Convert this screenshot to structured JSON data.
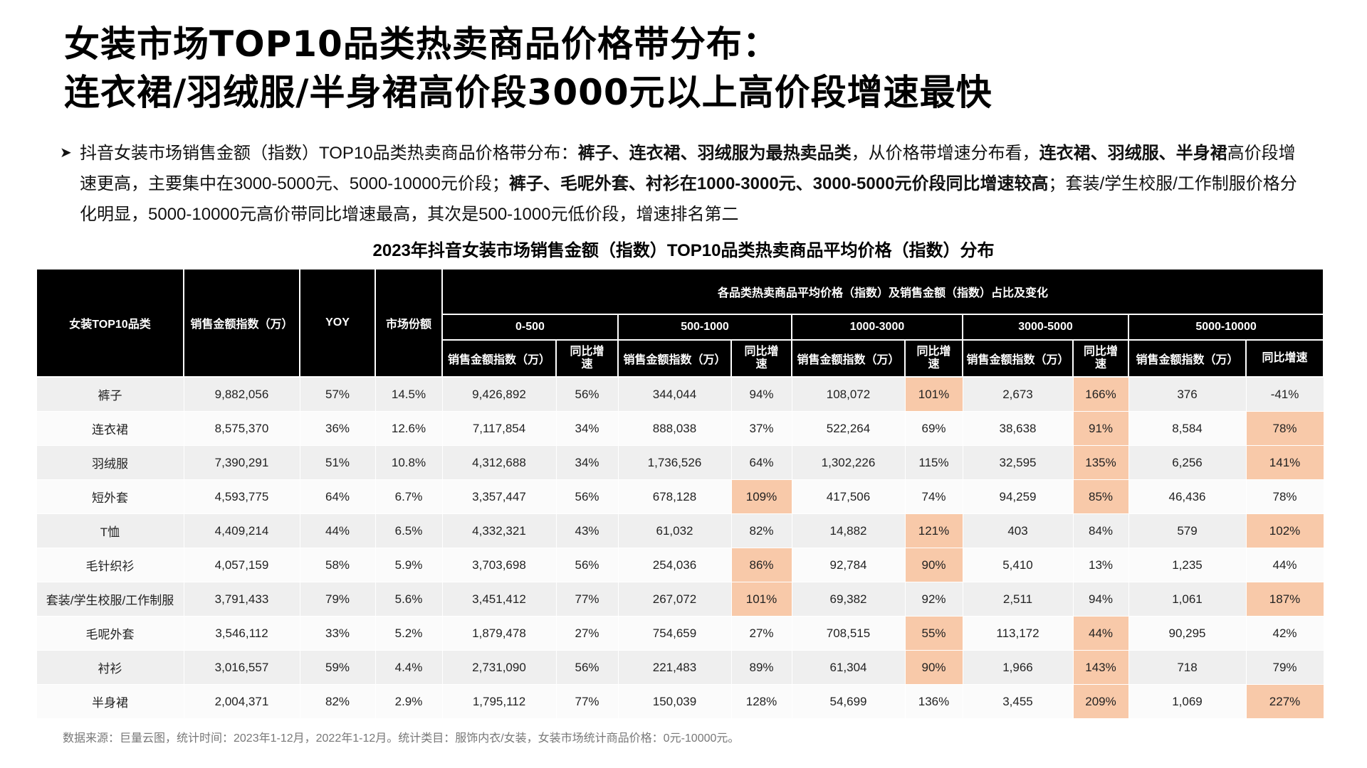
{
  "title": {
    "line1": "女装市场TOP10品类热卖商品价格带分布：",
    "line2": "连衣裙/羽绒服/半身裙高价段3000元以上高价段增速最快"
  },
  "summary": {
    "bullet": "➤",
    "p1": "抖音女装市场销售金额（指数）TOP10品类热卖商品价格带分布：",
    "b1": "裤子、连衣裙、羽绒服为最热卖品类",
    "p2": "，从价格带增速分布看，",
    "b2": "连衣裙、羽绒服、半身裙",
    "p3": "高价段增速更高，主要集中在3000-5000元、5000-10000元价段；",
    "b3": "裤子、毛呢外套、衬衫在1000-3000元、3000-5000元价段同比增速较高",
    "p4": "；套装/学生校服/工作制服价格分化明显，5000-10000元高价带同比增速最高，其次是500-1000元低价段，增速排名第二"
  },
  "table_title": "2023年抖音女装市场销售金额（指数）TOP10品类热卖商品平均价格（指数）分布",
  "header": {
    "category": "女装TOP10品类",
    "sales": "销售金额指数（万）",
    "yoy": "YOY",
    "share": "市场份额",
    "group": "各品类热卖商品平均价格（指数）及销售金额（指数）占比及变化",
    "bands": [
      "0-500",
      "500-1000",
      "1000-3000",
      "3000-5000",
      "5000-10000"
    ],
    "sub_sales": "销售金额指数（万）",
    "sub_growth": "同比增速"
  },
  "highlight_color": "#f8c9a9",
  "rows": [
    {
      "cat": "裤子",
      "sales": "9,882,056",
      "yoy": "57%",
      "share": "14.5%",
      "b": [
        [
          "9,426,892",
          "56%"
        ],
        [
          "344,044",
          "94%"
        ],
        [
          "108,072",
          "101%"
        ],
        [
          "2,673",
          "166%"
        ],
        [
          "376",
          "-41%"
        ]
      ],
      "hl": [
        false,
        false,
        true,
        true,
        false
      ]
    },
    {
      "cat": "连衣裙",
      "sales": "8,575,370",
      "yoy": "36%",
      "share": "12.6%",
      "b": [
        [
          "7,117,854",
          "34%"
        ],
        [
          "888,038",
          "37%"
        ],
        [
          "522,264",
          "69%"
        ],
        [
          "38,638",
          "91%"
        ],
        [
          "8,584",
          "78%"
        ]
      ],
      "hl": [
        false,
        false,
        false,
        true,
        true
      ]
    },
    {
      "cat": "羽绒服",
      "sales": "7,390,291",
      "yoy": "51%",
      "share": "10.8%",
      "b": [
        [
          "4,312,688",
          "34%"
        ],
        [
          "1,736,526",
          "64%"
        ],
        [
          "1,302,226",
          "115%"
        ],
        [
          "32,595",
          "135%"
        ],
        [
          "6,256",
          "141%"
        ]
      ],
      "hl": [
        false,
        false,
        false,
        true,
        true
      ]
    },
    {
      "cat": "短外套",
      "sales": "4,593,775",
      "yoy": "64%",
      "share": "6.7%",
      "b": [
        [
          "3,357,447",
          "56%"
        ],
        [
          "678,128",
          "109%"
        ],
        [
          "417,506",
          "74%"
        ],
        [
          "94,259",
          "85%"
        ],
        [
          "46,436",
          "78%"
        ]
      ],
      "hl": [
        false,
        true,
        false,
        true,
        false
      ]
    },
    {
      "cat": "T恤",
      "sales": "4,409,214",
      "yoy": "44%",
      "share": "6.5%",
      "b": [
        [
          "4,332,321",
          "43%"
        ],
        [
          "61,032",
          "82%"
        ],
        [
          "14,882",
          "121%"
        ],
        [
          "403",
          "84%"
        ],
        [
          "579",
          "102%"
        ]
      ],
      "hl": [
        false,
        false,
        true,
        false,
        true
      ]
    },
    {
      "cat": "毛针织衫",
      "sales": "4,057,159",
      "yoy": "58%",
      "share": "5.9%",
      "b": [
        [
          "3,703,698",
          "56%"
        ],
        [
          "254,036",
          "86%"
        ],
        [
          "92,784",
          "90%"
        ],
        [
          "5,410",
          "13%"
        ],
        [
          "1,235",
          "44%"
        ]
      ],
      "hl": [
        false,
        true,
        true,
        false,
        false
      ]
    },
    {
      "cat": "套装/学生校服/工作制服",
      "sales": "3,791,433",
      "yoy": "79%",
      "share": "5.6%",
      "b": [
        [
          "3,451,412",
          "77%"
        ],
        [
          "267,072",
          "101%"
        ],
        [
          "69,382",
          "92%"
        ],
        [
          "2,511",
          "94%"
        ],
        [
          "1,061",
          "187%"
        ]
      ],
      "hl": [
        false,
        true,
        false,
        false,
        true
      ]
    },
    {
      "cat": "毛呢外套",
      "sales": "3,546,112",
      "yoy": "33%",
      "share": "5.2%",
      "b": [
        [
          "1,879,478",
          "27%"
        ],
        [
          "754,659",
          "27%"
        ],
        [
          "708,515",
          "55%"
        ],
        [
          "113,172",
          "44%"
        ],
        [
          "90,295",
          "42%"
        ]
      ],
      "hl": [
        false,
        false,
        true,
        true,
        false
      ]
    },
    {
      "cat": "衬衫",
      "sales": "3,016,557",
      "yoy": "59%",
      "share": "4.4%",
      "b": [
        [
          "2,731,090",
          "56%"
        ],
        [
          "221,483",
          "89%"
        ],
        [
          "61,304",
          "90%"
        ],
        [
          "1,966",
          "143%"
        ],
        [
          "718",
          "79%"
        ]
      ],
      "hl": [
        false,
        false,
        true,
        true,
        false
      ]
    },
    {
      "cat": "半身裙",
      "sales": "2,004,371",
      "yoy": "82%",
      "share": "2.9%",
      "b": [
        [
          "1,795,112",
          "77%"
        ],
        [
          "150,039",
          "128%"
        ],
        [
          "54,699",
          "136%"
        ],
        [
          "3,455",
          "209%"
        ],
        [
          "1,069",
          "227%"
        ]
      ],
      "hl": [
        false,
        false,
        false,
        true,
        true
      ]
    }
  ],
  "source": "数据来源：巨量云图，统计时间：2023年1-12月，2022年1-12月。统计类目：服饰内衣/女装，女装市场统计商品价格：0元-10000元。"
}
